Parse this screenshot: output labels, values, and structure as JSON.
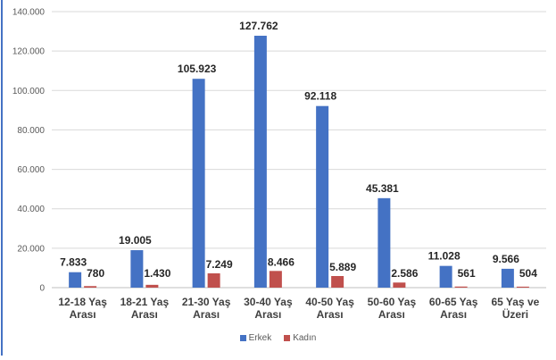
{
  "chart_data": {
    "type": "bar",
    "title": "",
    "xlabel": "",
    "ylabel": "",
    "ylim": [
      0,
      140000
    ],
    "yticks": [
      "0",
      "20.000",
      "40.000",
      "60.000",
      "80.000",
      "100.000",
      "120.000",
      "140.000"
    ],
    "grid": true,
    "legend_position": "bottom",
    "categories": [
      [
        "12-18 Yaş",
        "Arası"
      ],
      [
        "18-21 Yaş",
        "Arası"
      ],
      [
        "21-30 Yaş",
        "Arası"
      ],
      [
        "30-40 Yaş",
        "Arası"
      ],
      [
        "40-50 Yaş",
        "Arası"
      ],
      [
        "50-60 Yaş",
        "Arası"
      ],
      [
        "60-65 Yaş",
        "Arası"
      ],
      [
        "65 Yaş ve",
        "Üzeri"
      ]
    ],
    "series": [
      {
        "name": "Erkek",
        "color": "#4472c4",
        "values": [
          7833,
          19005,
          105923,
          127762,
          92118,
          45381,
          11028,
          9566
        ],
        "labels": [
          "7.833",
          "19.005",
          "105.923",
          "127.762",
          "92.118",
          "45.381",
          "11.028",
          "9.566"
        ]
      },
      {
        "name": "Kadın",
        "color": "#c0504d",
        "values": [
          780,
          1430,
          7249,
          8466,
          5889,
          2586,
          561,
          504
        ],
        "labels": [
          "780",
          "1.430",
          "7.249",
          "8.466",
          "5.889",
          "2.586",
          "561",
          "504"
        ]
      }
    ]
  }
}
